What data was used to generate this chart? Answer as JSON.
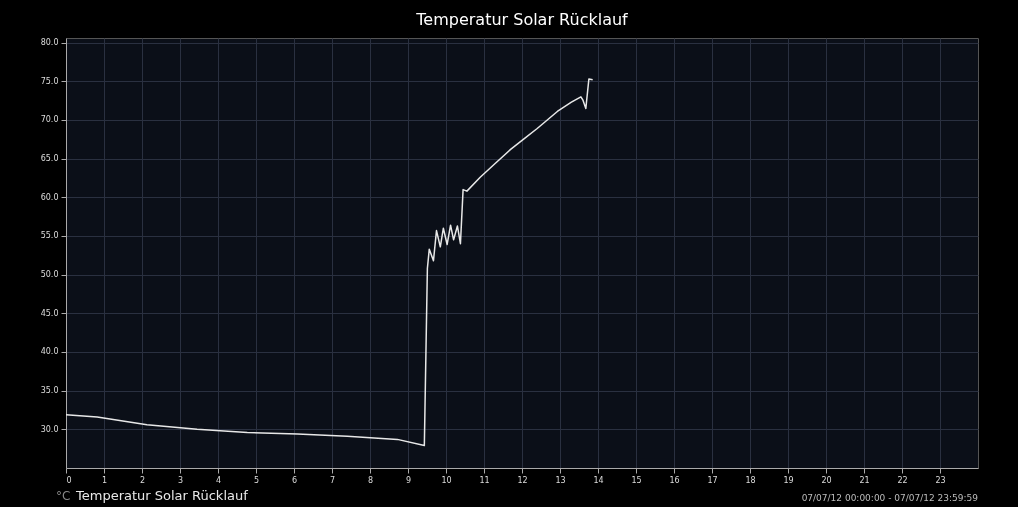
{
  "chart_data": {
    "type": "line",
    "title": "Temperatur Solar Rücklauf",
    "x": [
      0,
      0.82,
      2.13,
      3.45,
      4.77,
      6.09,
      7.4,
      8.72,
      9.43,
      9.51,
      9.56,
      9.67,
      9.75,
      9.85,
      9.93,
      10.03,
      10.12,
      10.2,
      10.3,
      10.38,
      10.45,
      10.55,
      10.9,
      11.3,
      11.7,
      12.06,
      12.4,
      12.93,
      13.3,
      13.55,
      13.6,
      13.68,
      13.76,
      13.86
    ],
    "series": [
      {
        "name": "Temperatur Solar Rücklauf",
        "color": "#e8e8e8",
        "values": [
          31.9,
          31.6,
          30.6,
          30.0,
          29.6,
          29.4,
          29.1,
          28.7,
          27.9,
          50.8,
          53.3,
          51.8,
          55.7,
          53.6,
          56.0,
          53.9,
          56.4,
          54.5,
          56.3,
          54.0,
          61.0,
          60.8,
          62.6,
          64.4,
          66.2,
          67.6,
          68.9,
          71.1,
          72.3,
          73.0,
          72.6,
          71.5,
          75.3,
          75.2
        ]
      }
    ],
    "ylabel": "°C",
    "xlim": [
      0,
      24
    ],
    "ylim": [
      25,
      80.6
    ],
    "xticks": [
      0,
      1,
      2,
      3,
      4,
      5,
      6,
      7,
      8,
      9,
      10,
      11,
      12,
      13,
      14,
      15,
      16,
      17,
      18,
      19,
      20,
      21,
      22,
      23
    ],
    "yticks": [
      {
        "value": 30,
        "label": "30.0"
      },
      {
        "value": 35,
        "label": "35.0"
      },
      {
        "value": 40,
        "label": "40.0"
      },
      {
        "value": 45,
        "label": "45.0"
      },
      {
        "value": 50,
        "label": "50.0"
      },
      {
        "value": 55,
        "label": "55.0"
      },
      {
        "value": 60,
        "label": "60.0"
      },
      {
        "value": 65,
        "label": "65.0"
      },
      {
        "value": 70,
        "label": "70.0"
      },
      {
        "value": 75,
        "label": "75.0"
      },
      {
        "value": 80,
        "label": "80.0"
      }
    ],
    "grid": true,
    "legend": "bottom left",
    "marker": "none",
    "line_style": "solid",
    "annotations": [
      "07/07/12 00:00:00 - 07/07/12 23:59:59"
    ]
  }
}
